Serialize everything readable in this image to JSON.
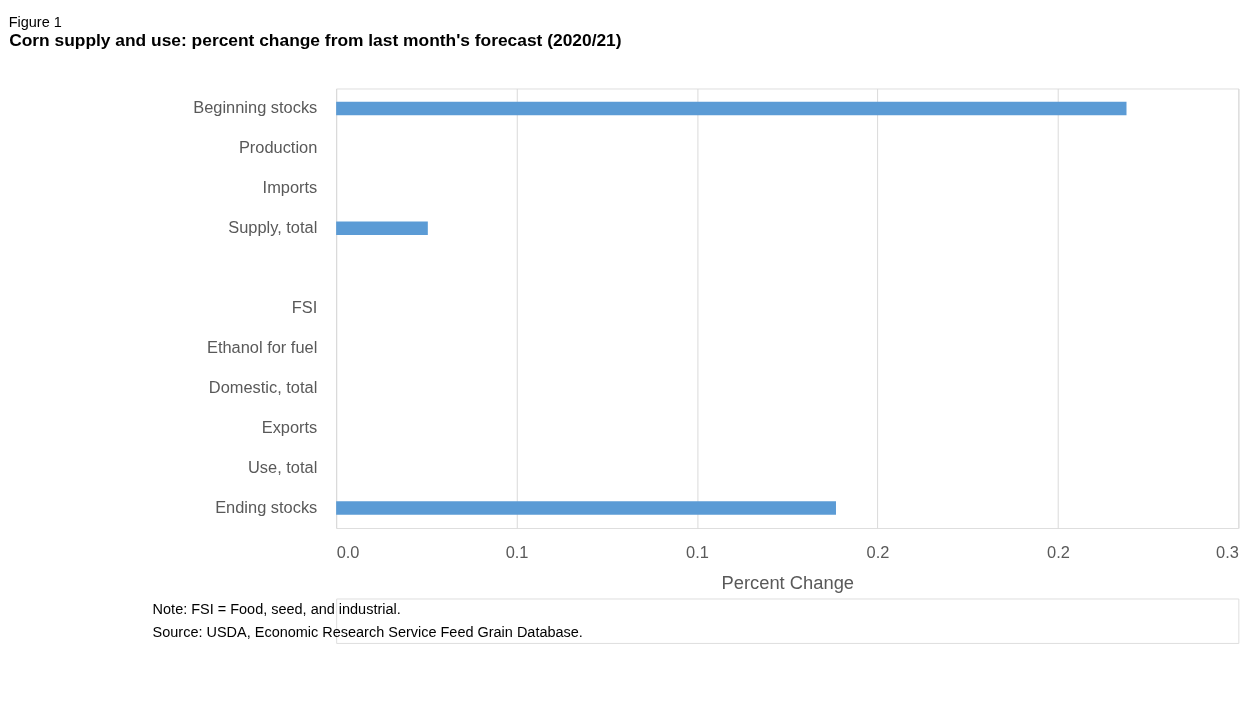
{
  "chart_data": {
    "type": "bar",
    "orientation": "horizontal",
    "title": "Corn supply and use: percent change from last month's forecast (2020/21)",
    "xlabel": "Percent Change",
    "categories": [
      "Beginning stocks",
      "Production",
      "Imports",
      "Supply, total",
      null,
      "FSI",
      "Ethanol for fuel",
      "Domestic, total",
      "Exports",
      "Use, total",
      "Ending stocks"
    ],
    "values": [
      0.219,
      0,
      0,
      0.0254,
      null,
      0,
      0,
      0,
      0,
      0,
      0.1385
    ],
    "color": "#5b9bd5",
    "xlim": [
      0,
      0.25
    ],
    "xticks": [
      {
        "value": 0,
        "label": "0.0"
      },
      {
        "value": 0.05,
        "label": "0.1"
      },
      {
        "value": 0.1,
        "label": "0.1"
      },
      {
        "value": 0.15,
        "label": "0.2"
      },
      {
        "value": 0.2,
        "label": "0.2"
      },
      {
        "value": 0.25,
        "label": "0.3"
      }
    ],
    "grid": "x",
    "annotations": [
      "Figure 1",
      "Note: FSI = Food, seed, and industrial.",
      "Source: USDA, Economic Research Service Feed Grain Database."
    ]
  }
}
